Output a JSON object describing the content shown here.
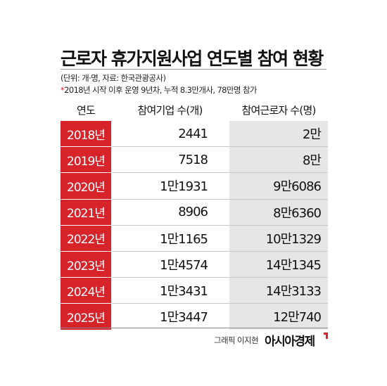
{
  "title": "근로자 휴가지원사업 연도별 참여 현황",
  "unit_note": "(단위: 개·명, 자료: 한국관광공사)",
  "footnote_star": "*",
  "footnote": "2018년 시작 이후 운영 9년차, 누적 8.3만개사, 78만명 참가",
  "headers": {
    "year": "연도",
    "companies": "참여기업 수(개)",
    "workers": "참여근로자 수(명)"
  },
  "rows": [
    {
      "year": "2018년",
      "companies": "2441",
      "workers": "2만"
    },
    {
      "year": "2019년",
      "companies": "7518",
      "workers": "8만"
    },
    {
      "year": "2020년",
      "companies": "1만1931",
      "workers": "9만6086"
    },
    {
      "year": "2021년",
      "companies": "8906",
      "workers": "8만6360"
    },
    {
      "year": "2022년",
      "companies": "1만1165",
      "workers": "10만1329"
    },
    {
      "year": "2023년",
      "companies": "1만4574",
      "workers": "14만1345"
    },
    {
      "year": "2024년",
      "companies": "1만3431",
      "workers": "14만3133"
    },
    {
      "year": "2025년",
      "companies": "1만3447",
      "workers": "12만740"
    }
  ],
  "credit": "그래픽 이지현",
  "logo": "아시아경제",
  "colors": {
    "accent": "#d7232a",
    "workers_column_bg": "#e6e6e6"
  }
}
